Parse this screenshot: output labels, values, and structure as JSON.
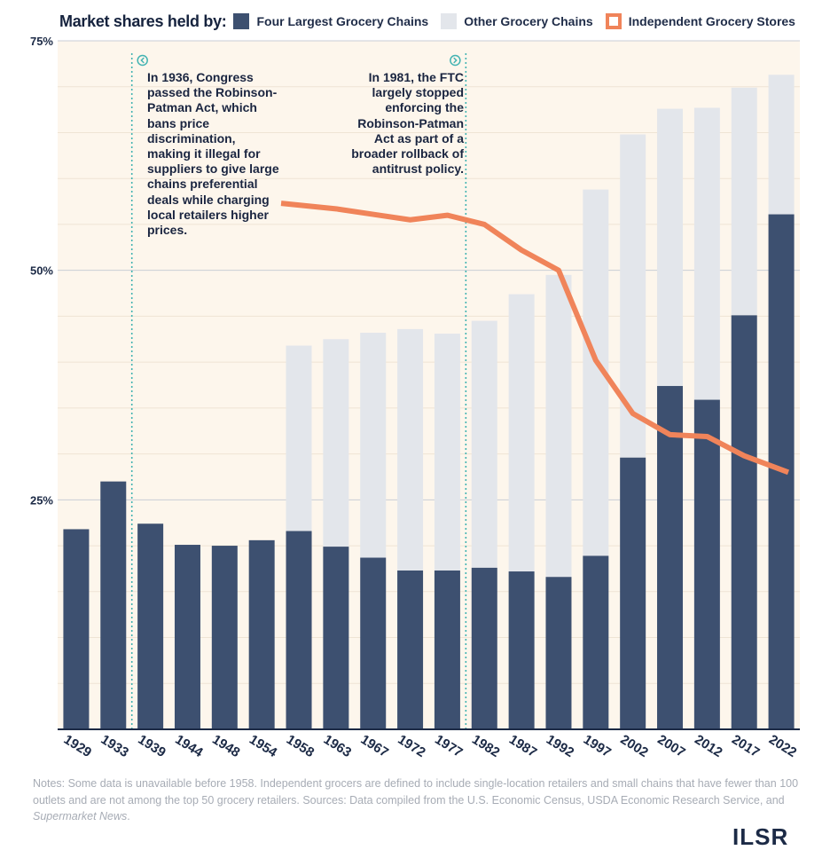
{
  "legend": {
    "lead": "Market shares held by:",
    "items": [
      {
        "label": "Four Largest Grocery Chains",
        "color": "#3d5070"
      },
      {
        "label": "Other Grocery Chains",
        "color": "#e3e6eb"
      },
      {
        "label": "Independent Grocery Stores",
        "color": "#f0845a"
      }
    ]
  },
  "annotations": [
    {
      "year": "1936",
      "text": "In 1936, Congress passed the Robinson-Patman Act, which bans price discrimination, making it illegal for suppliers to give large chains preferential deals while charging local retailers higher prices.",
      "icon": "chevron-left-circle-icon"
    },
    {
      "year": "1981",
      "text": "In 1981, the FTC largely stopped enforcing the Robinson-Patman Act as part of a broader rollback of antitrust policy.",
      "icon": "chevron-right-circle-icon"
    }
  ],
  "chart_data": {
    "type": "bar",
    "stacked": true,
    "categories": [
      "1929",
      "1933",
      "1939",
      "1944",
      "1948",
      "1954",
      "1958",
      "1963",
      "1967",
      "1972",
      "1977",
      "1982",
      "1987",
      "1992",
      "1997",
      "2002",
      "2007",
      "2012",
      "2017",
      "2022"
    ],
    "series": [
      {
        "name": "Four Largest Grocery Chains",
        "type": "bar",
        "color": "#3d5070",
        "values": [
          21.8,
          27.0,
          22.4,
          20.1,
          20.0,
          20.6,
          21.6,
          19.9,
          18.7,
          17.3,
          17.3,
          17.6,
          17.2,
          16.6,
          18.9,
          29.6,
          37.4,
          35.9,
          45.1,
          56.1
        ]
      },
      {
        "name": "Other Grocery Chains",
        "type": "bar",
        "color": "#e3e6eb",
        "values": [
          null,
          null,
          null,
          null,
          null,
          null,
          20.2,
          22.6,
          24.5,
          26.3,
          25.8,
          26.9,
          30.2,
          32.9,
          39.9,
          35.2,
          30.2,
          31.8,
          24.8,
          15.2
        ]
      },
      {
        "name": "Independent Grocery Stores",
        "type": "line",
        "color": "#f0845a",
        "values": [
          null,
          null,
          null,
          null,
          null,
          null,
          57.3,
          56.7,
          56.1,
          55.5,
          56.0,
          55.0,
          52.2,
          50.0,
          40.2,
          34.4,
          32.1,
          31.9,
          29.8,
          28.0
        ]
      }
    ],
    "yticks": [
      25,
      50,
      75
    ],
    "ytick_labels": [
      "25%",
      "50%",
      "75%"
    ],
    "ylim": [
      0,
      75
    ],
    "annotation_lines": [
      {
        "after_category": "1933",
        "year": "1936"
      },
      {
        "after_category": "1977",
        "year": "1981"
      }
    ],
    "grid": true
  },
  "footnote": {
    "prefix": "Notes: Some data is unavailable before 1958. Independent grocers are defined to include single-location retailers and small chains that have fewer than 100 outlets and are not among the top 50 grocery retailers. Sources: Data compiled from the U.S. Economic Census, USDA Economic Research Service, and ",
    "source_italic": "Supermarket News",
    "suffix": "."
  },
  "logo": {
    "text": "ILSR"
  }
}
